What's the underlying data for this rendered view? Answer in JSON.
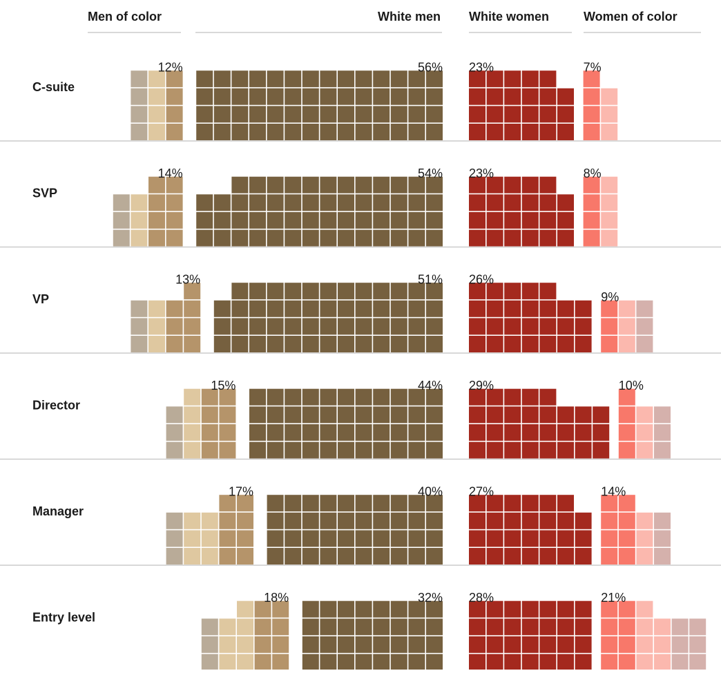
{
  "chart_data": {
    "type": "waffle",
    "categories": [
      "C-suite",
      "SVP",
      "VP",
      "Director",
      "Manager",
      "Entry level"
    ],
    "series": [
      {
        "name": "Men of color",
        "colors": [
          "#b5946a",
          "#dfc8a0",
          "#b9ab98"
        ],
        "values": [
          12,
          14,
          13,
          15,
          17,
          18
        ],
        "value_labels": [
          "12%",
          "14%",
          "13%",
          "15%",
          "17%",
          "18%"
        ]
      },
      {
        "name": "White men",
        "color": "#76603f",
        "values": [
          56,
          54,
          51,
          44,
          40,
          32
        ],
        "value_labels": [
          "56%",
          "54%",
          "51%",
          "44%",
          "40%",
          "32%"
        ]
      },
      {
        "name": "White women",
        "color": "#a4291e",
        "values": [
          23,
          23,
          26,
          29,
          27,
          28
        ],
        "value_labels": [
          "23%",
          "23%",
          "26%",
          "29%",
          "27%",
          "28%"
        ]
      },
      {
        "name": "Women of color",
        "colors": [
          "#f8786a",
          "#fbb8ae",
          "#d5b1ac"
        ],
        "values": [
          7,
          8,
          9,
          10,
          14,
          21
        ],
        "value_labels": [
          "7%",
          "8%",
          "9%",
          "10%",
          "14%",
          "21%"
        ]
      }
    ]
  }
}
